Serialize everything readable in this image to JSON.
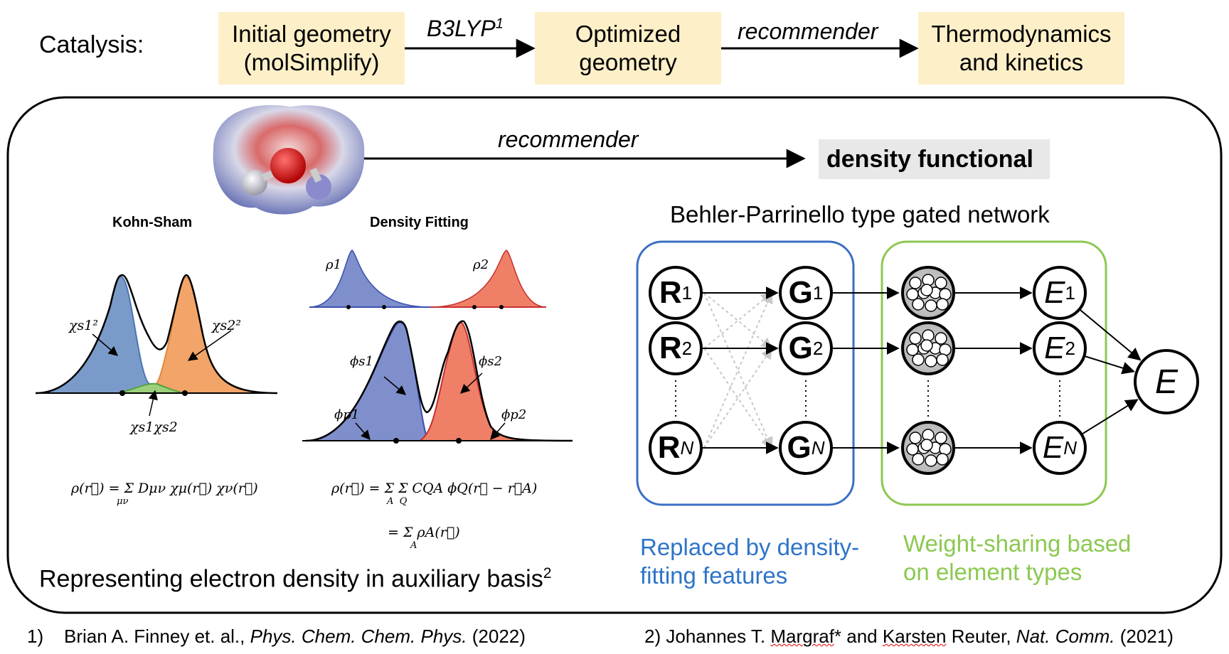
{
  "header": {
    "label": "Catalysis:",
    "steps": [
      {
        "lines": [
          "Initial geometry",
          "(molSimplify)"
        ]
      },
      {
        "lines": [
          "Optimized",
          "geometry"
        ]
      },
      {
        "lines": [
          "Thermodynamics",
          "and kinetics"
        ]
      }
    ],
    "arrows": [
      {
        "label": "B3LYP",
        "sup": "1"
      },
      {
        "label": "recommender"
      }
    ]
  },
  "panel": {
    "recommender_label": "recommender",
    "target": "density functional",
    "left": {
      "kohn_sham_title": "Kohn-Sham",
      "density_fitting_title": "Density Fitting",
      "ks_labels": {
        "chi1": "χs1²",
        "chi2": "χs2²",
        "cross": "χs1χs2"
      },
      "df_labels": {
        "rho1": "ρ1",
        "rho2": "ρ2",
        "phis1": "ϕs1",
        "phis2": "ϕs2",
        "phip1": "ϕp1",
        "phip2": "ϕp2"
      },
      "ks_formula": "ρ(r⃗) = Σ Dμν χμ(r⃗) χν(r⃗)",
      "ks_formula_sub": "μν",
      "df_formula": "ρ(r⃗) = Σ Σ CQA ϕQ(r⃗ − r⃗A)",
      "df_formula_sub": "A  Q",
      "df_formula2": "= Σ ρA(r⃗)",
      "df_formula2_sub": "A",
      "caption": "Representing electron density in auxiliary basis",
      "caption_sup": "2"
    },
    "right": {
      "title": "Behler-Parrinello type gated network",
      "r_nodes": [
        {
          "main": "R",
          "sub": "1"
        },
        {
          "main": "R",
          "sub": "2"
        },
        {
          "main": "R",
          "sub": "N"
        }
      ],
      "g_nodes": [
        {
          "main": "G",
          "sub": "1"
        },
        {
          "main": "G",
          "sub": "2"
        },
        {
          "main": "G",
          "sub": "N"
        }
      ],
      "e_nodes": [
        {
          "main": "E",
          "sub": "1"
        },
        {
          "main": "E",
          "sub": "2"
        },
        {
          "main": "E",
          "sub": "N"
        }
      ],
      "output": "E",
      "blue_caption": [
        "Replaced by density-",
        "fitting features"
      ],
      "green_caption": [
        "Weight-sharing based",
        "on element types"
      ]
    }
  },
  "references": {
    "ref1": {
      "num": "1)",
      "authors": "Brian A. Finney et. al.,",
      "journal": "Phys. Chem. Chem. Phys.",
      "year": "(2022)"
    },
    "ref2": {
      "num": "2)",
      "authors_a": "Johannes T.",
      "name_a": "Margraf",
      "authors_b": "* and",
      "name_b": "Karsten",
      "authors_c": "Reuter,",
      "journal": "Nat. Comm.",
      "year": "(2021)"
    }
  },
  "colors": {
    "yellow_box": "#fdf0c8",
    "blue": "#3b6fc4",
    "green": "#8cc850",
    "blue_text": "#2e74c8",
    "green_text": "#8cc850",
    "ks_blue_fill": "#7a9bc9",
    "ks_orange_fill": "#f3a468",
    "df_blue_fill": "#7f8fcb",
    "df_red_fill": "#ef8067",
    "target_bg": "#e8e8e8"
  }
}
